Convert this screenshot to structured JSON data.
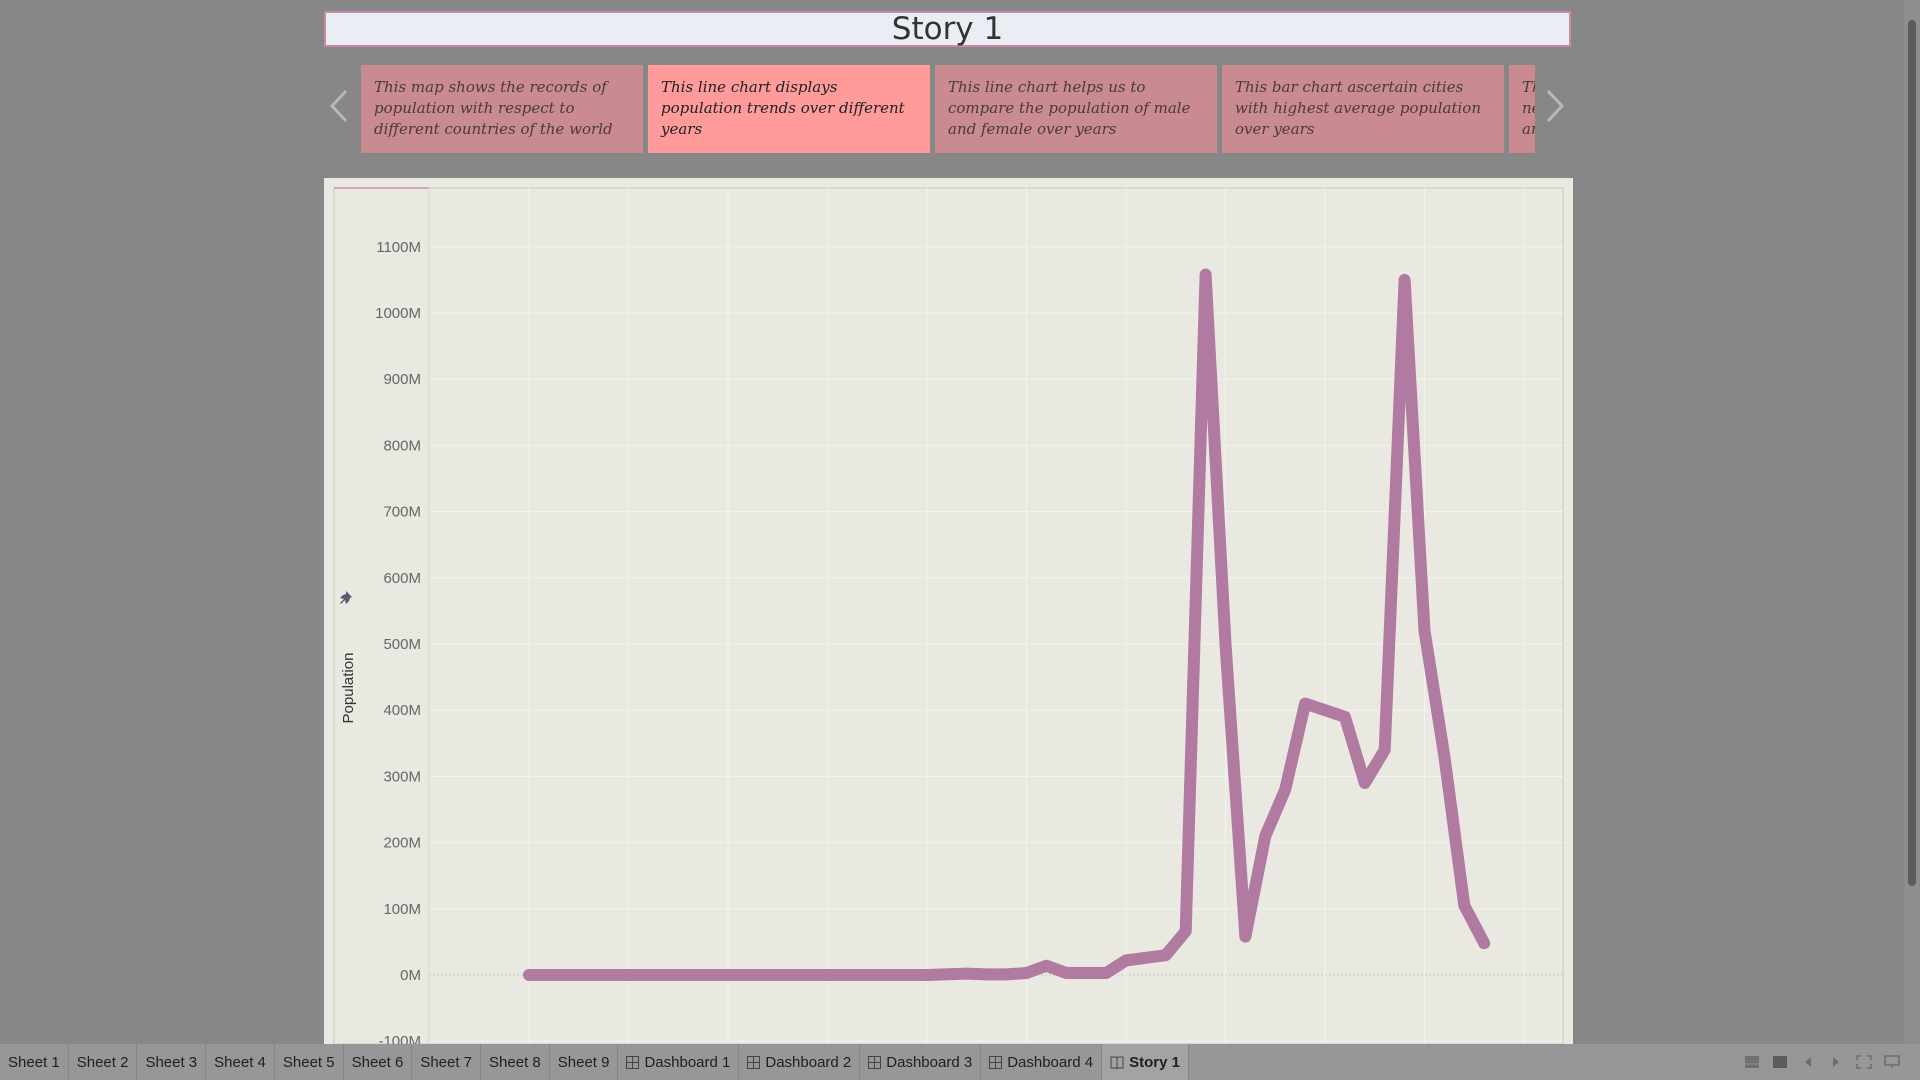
{
  "story": {
    "title": "Story 1",
    "points": [
      {
        "caption": "This map shows the records of population with respect to different countries of the world"
      },
      {
        "caption": "This line chart displays population trends over different years"
      },
      {
        "caption": "This line chart helps us to compare the population of male and female over years"
      },
      {
        "caption": "This bar chart ascertain cities with highest average population over years"
      },
      {
        "caption": "Th... ne... an..."
      }
    ],
    "active_point": 1
  },
  "icons": {
    "prev": "chevron-left-icon",
    "next": "chevron-right-icon",
    "pin": "pin-icon",
    "dashboard_tab": "dashboard-grid-icon",
    "story_tab": "story-book-icon"
  },
  "colors": {
    "line": "#b07aa1",
    "active_story_point": "#ff9b9b",
    "story_point": "#c98b8f",
    "chart_background": "#e9e9e1"
  },
  "chart_data": {
    "type": "line",
    "title": "",
    "xlabel": "",
    "ylabel": "Population",
    "ylim": [
      -100,
      1150
    ],
    "yticks": [
      {
        "value": -100,
        "label": "-100M"
      },
      {
        "value": 0,
        "label": "0M"
      },
      {
        "value": 100,
        "label": "100M"
      },
      {
        "value": 200,
        "label": "200M"
      },
      {
        "value": 300,
        "label": "300M"
      },
      {
        "value": 400,
        "label": "400M"
      },
      {
        "value": 500,
        "label": "500M"
      },
      {
        "value": 600,
        "label": "600M"
      },
      {
        "value": 700,
        "label": "700M"
      },
      {
        "value": 800,
        "label": "800M"
      },
      {
        "value": 900,
        "label": "900M"
      },
      {
        "value": 1000,
        "label": "1000M"
      },
      {
        "value": 1100,
        "label": "1100M"
      }
    ],
    "xlim": [
      0,
      57
    ],
    "xgrid": [
      5,
      10,
      15,
      20,
      25,
      30,
      35,
      40,
      45,
      50,
      55
    ],
    "grid": true,
    "series": [
      {
        "values_unit": "M",
        "x": [
          5,
          10,
          15,
          20,
          25,
          27,
          28,
          29,
          30,
          31,
          32,
          33,
          34,
          35,
          36,
          37,
          38,
          39,
          40,
          41,
          42,
          43,
          44,
          45,
          46,
          47,
          48,
          49,
          50
        ],
        "y": [
          0,
          0,
          0,
          0,
          0,
          2,
          1,
          1,
          3,
          14,
          3,
          3,
          3,
          22,
          26,
          30,
          66,
          1058,
          500,
          58,
          210,
          280,
          410,
          400,
          390,
          290,
          340,
          1050,
          520
        ]
      }
    ],
    "series_tail": {
      "x": [
        50,
        51,
        52,
        53
      ],
      "y": [
        520,
        330,
        105,
        48
      ]
    }
  },
  "tabs": [
    {
      "label": "Sheet 1",
      "type": "sheet"
    },
    {
      "label": "Sheet 2",
      "type": "sheet"
    },
    {
      "label": "Sheet 3",
      "type": "sheet"
    },
    {
      "label": "Sheet 4",
      "type": "sheet"
    },
    {
      "label": "Sheet 5",
      "type": "sheet"
    },
    {
      "label": "Sheet 6",
      "type": "sheet"
    },
    {
      "label": "Sheet 7",
      "type": "sheet"
    },
    {
      "label": "Sheet 8",
      "type": "sheet"
    },
    {
      "label": "Sheet 9",
      "type": "sheet"
    },
    {
      "label": "Dashboard 1",
      "type": "dashboard"
    },
    {
      "label": "Dashboard 2",
      "type": "dashboard"
    },
    {
      "label": "Dashboard 3",
      "type": "dashboard"
    },
    {
      "label": "Dashboard 4",
      "type": "dashboard"
    },
    {
      "label": "Story 1",
      "type": "story",
      "active": true
    }
  ],
  "tools": [
    "show-filmstrip-icon",
    "show-sheet-icon",
    "tab-prev-icon",
    "tab-next-icon",
    "fullscreen-icon",
    "presentation-icon"
  ]
}
